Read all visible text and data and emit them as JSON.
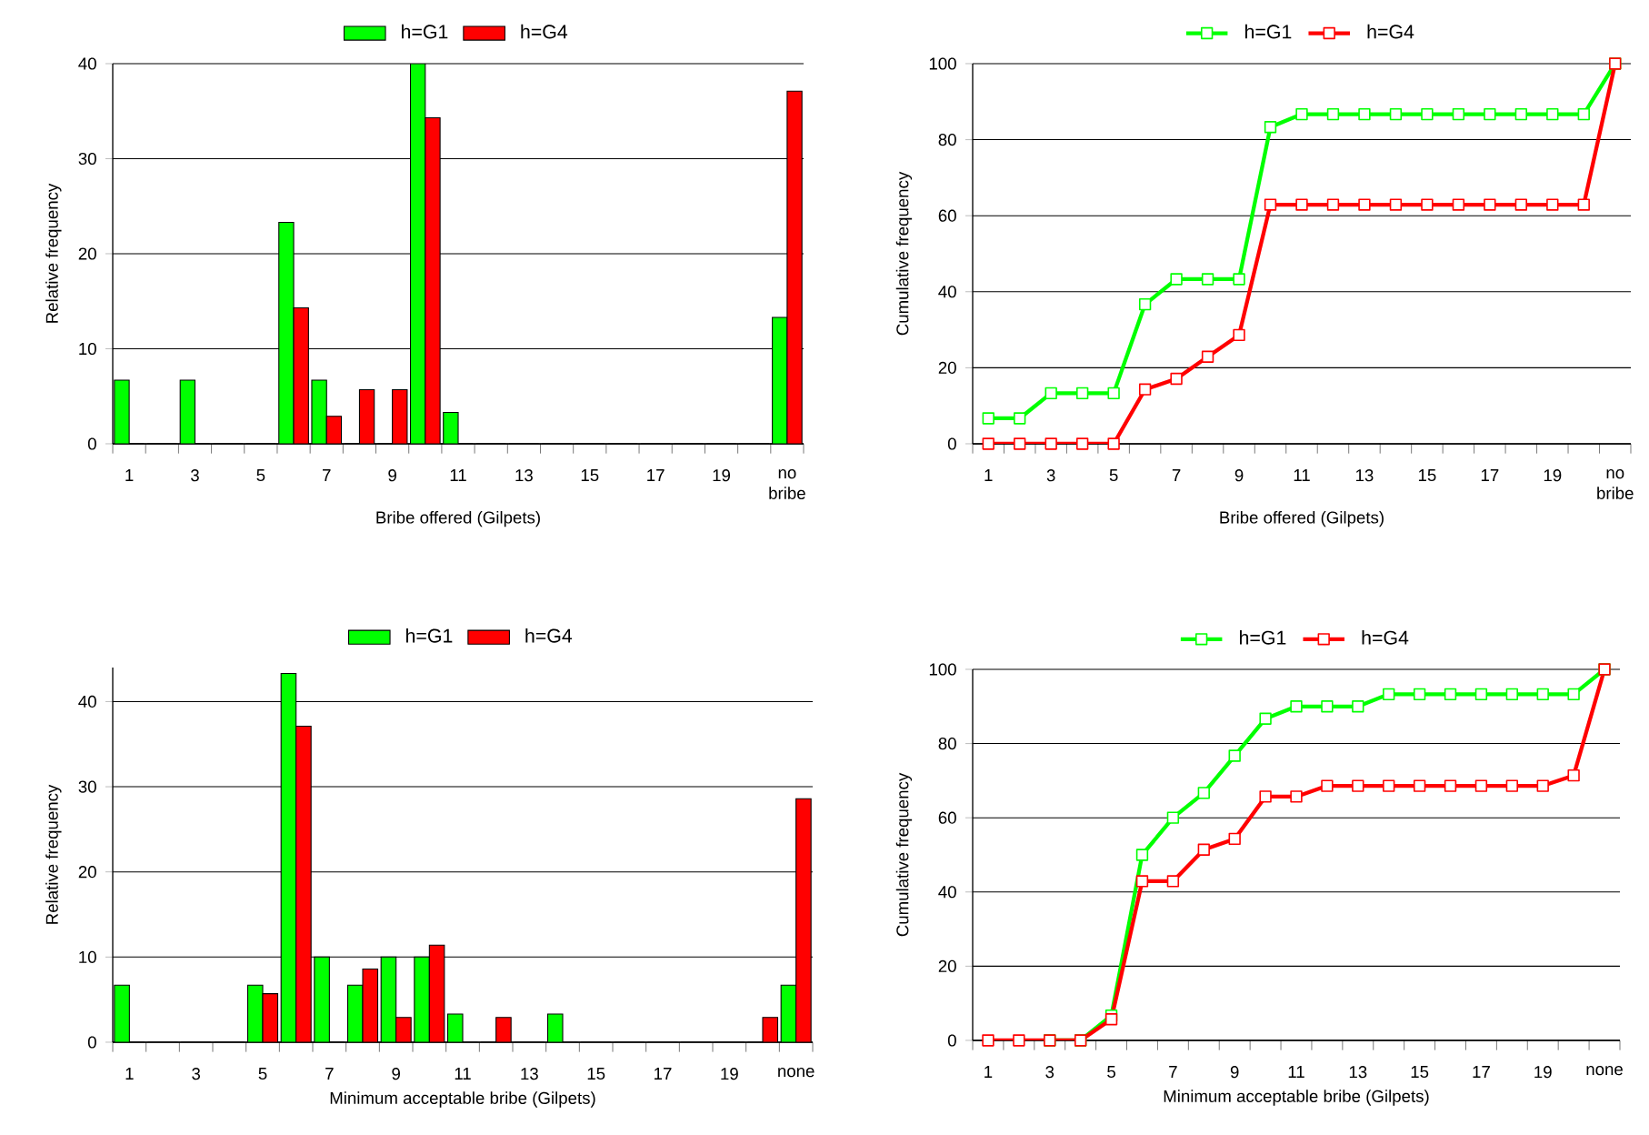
{
  "chart_data": [
    {
      "type": "bar",
      "xlabel": "Bribe offered (Gilpets)",
      "ylabel": "Relative frequency",
      "categories": [
        "1",
        null,
        "3",
        null,
        "5",
        null,
        "7",
        null,
        "9",
        null,
        "11",
        null,
        "13",
        null,
        "15",
        null,
        "17",
        null,
        "19",
        null,
        "no bribe"
      ],
      "series": [
        {
          "name": "h=G1",
          "color": "#00ff00",
          "values": [
            6.7,
            0,
            6.7,
            0,
            0,
            23.3,
            6.7,
            0,
            0,
            40,
            3.3,
            0,
            0,
            0,
            0,
            0,
            0,
            0,
            0,
            0,
            13.3
          ]
        },
        {
          "name": "h=G4",
          "color": "#ff0000",
          "values": [
            0,
            0,
            0,
            0,
            0,
            14.3,
            2.9,
            5.7,
            5.7,
            34.3,
            0,
            0,
            0,
            0,
            0,
            0,
            0,
            0,
            0,
            0,
            37.1
          ]
        }
      ],
      "ylim": [
        0,
        40
      ],
      "yticks": [
        0,
        10,
        20,
        30,
        40
      ],
      "grid": "y",
      "legend": "top"
    },
    {
      "type": "line",
      "xlabel": "Bribe offered (Gilpets)",
      "ylabel": "Cumulative frequency",
      "categories": [
        "1",
        null,
        "3",
        null,
        "5",
        null,
        "7",
        null,
        "9",
        null,
        "11",
        null,
        "13",
        null,
        "15",
        null,
        "17",
        null,
        "19",
        null,
        "no bribe"
      ],
      "series": [
        {
          "name": "h=G1",
          "color": "#00ff00",
          "values": [
            6.7,
            6.7,
            13.3,
            13.3,
            13.3,
            36.7,
            43.3,
            43.3,
            43.3,
            83.3,
            86.7,
            86.7,
            86.7,
            86.7,
            86.7,
            86.7,
            86.7,
            86.7,
            86.7,
            86.7,
            100
          ]
        },
        {
          "name": "h=G4",
          "color": "#ff0000",
          "values": [
            0,
            0,
            0,
            0,
            0,
            14.3,
            17.1,
            22.9,
            28.6,
            62.9,
            62.9,
            62.9,
            62.9,
            62.9,
            62.9,
            62.9,
            62.9,
            62.9,
            62.9,
            62.9,
            100
          ]
        }
      ],
      "ylim": [
        0,
        100
      ],
      "yticks": [
        0,
        20,
        40,
        60,
        80,
        100
      ],
      "grid": "y",
      "legend": "top",
      "marker": "square"
    },
    {
      "type": "bar",
      "xlabel": "Minimum acceptable bribe (Gilpets)",
      "ylabel": "Relative frequency",
      "categories": [
        "1",
        null,
        "3",
        null,
        "5",
        null,
        "7",
        null,
        "9",
        null,
        "11",
        null,
        "13",
        null,
        "15",
        null,
        "17",
        null,
        "19",
        null,
        "none"
      ],
      "series": [
        {
          "name": "h=G1",
          "color": "#00ff00",
          "values": [
            6.7,
            0,
            0,
            0,
            6.7,
            43.3,
            10,
            6.7,
            10,
            10,
            3.3,
            0,
            0,
            3.3,
            0,
            0,
            0,
            0,
            0,
            0,
            6.7
          ]
        },
        {
          "name": "h=G4",
          "color": "#ff0000",
          "values": [
            0,
            0,
            0,
            0,
            5.7,
            37.1,
            0,
            8.6,
            2.9,
            11.4,
            0,
            2.9,
            0,
            0,
            0,
            0,
            0,
            0,
            0,
            2.9,
            28.6
          ]
        }
      ],
      "ylim": [
        0,
        44
      ],
      "yticks": [
        0,
        10,
        20,
        30,
        40
      ],
      "grid": "y",
      "legend": "top"
    },
    {
      "type": "line",
      "xlabel": "Minimum acceptable bribe (Gilpets)",
      "ylabel": "Cumulative frequency",
      "categories": [
        "1",
        null,
        "3",
        null,
        "5",
        null,
        "7",
        null,
        "9",
        null,
        "11",
        null,
        "13",
        null,
        "15",
        null,
        "17",
        null,
        "19",
        null,
        "none"
      ],
      "series": [
        {
          "name": "h=G1",
          "color": "#00ff00",
          "values": [
            null,
            null,
            0,
            0,
            6.7,
            50,
            60,
            66.7,
            76.7,
            86.7,
            90,
            90,
            90,
            93.3,
            93.3,
            93.3,
            93.3,
            93.3,
            93.3,
            93.3,
            100
          ]
        },
        {
          "name": "h=G4",
          "color": "#ff0000",
          "values": [
            0,
            0,
            0,
            0,
            5.7,
            42.9,
            42.9,
            51.4,
            54.3,
            65.7,
            65.7,
            68.6,
            68.6,
            68.6,
            68.6,
            68.6,
            68.6,
            68.6,
            68.6,
            71.4,
            100
          ]
        }
      ],
      "ylim": [
        0,
        100
      ],
      "yticks": [
        0,
        20,
        40,
        60,
        80,
        100
      ],
      "grid": "y",
      "legend": "top",
      "marker": "square"
    }
  ]
}
